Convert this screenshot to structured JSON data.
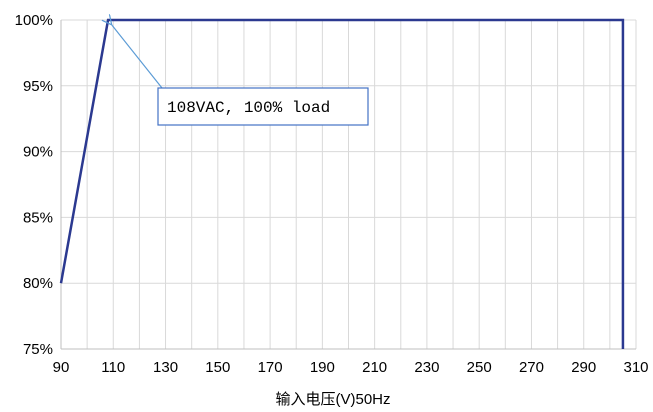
{
  "chart_data": {
    "type": "line",
    "title": "",
    "xlabel": "输入电压(V)50Hz",
    "ylabel": "",
    "xlim": [
      90,
      310
    ],
    "ylim": [
      75,
      100
    ],
    "x_ticks": [
      90,
      110,
      130,
      150,
      170,
      190,
      210,
      230,
      250,
      270,
      290,
      310
    ],
    "x_tick_labels": [
      "90",
      "110",
      "130",
      "150",
      "170",
      "190",
      "210",
      "230",
      "250",
      "270",
      "290",
      "310"
    ],
    "y_ticks": [
      75,
      80,
      85,
      90,
      95,
      100
    ],
    "y_tick_labels": [
      "75%",
      "80%",
      "85%",
      "90%",
      "95%",
      "100%"
    ],
    "grid": true,
    "legend": "none",
    "series": [
      {
        "x": [
          90,
          108,
          305,
          305
        ],
        "y": [
          80,
          100,
          100,
          75
        ],
        "color": "#2b3990"
      }
    ],
    "annotations": [
      {
        "text": "108VAC, 100% load",
        "target": [
          108,
          100
        ]
      }
    ]
  },
  "colors": {
    "grid": "#d9d9d9",
    "axis": "#bfbfbf",
    "annotation_arrow": "#5b9bd5",
    "annotation_border": "#4472c4"
  }
}
